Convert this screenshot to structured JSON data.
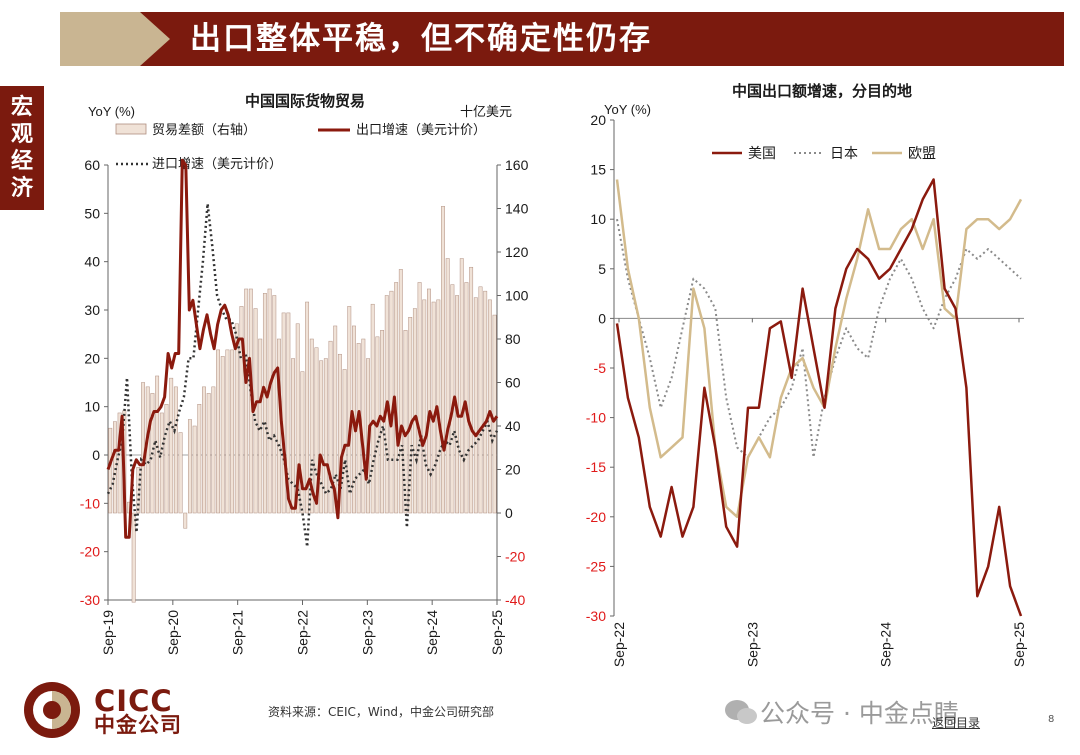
{
  "header": {
    "title": "出口整体平稳，但不确定性仍存",
    "section": "宏观经济"
  },
  "colors": {
    "brand": "#7b1a0e",
    "beige": "#c9b592",
    "bars": "#f0e2d7",
    "us": "#8b1a0e",
    "eu": "#d3bb8c",
    "japan": "#8a8a8a",
    "neg_ticks": "#e01a1a"
  },
  "chart_data": [
    {
      "type": "bar+line",
      "title": "中国国际货物贸易",
      "ylabel_left": "YoY (%)",
      "ylabel_right": "十亿美元",
      "ylim_left": [
        -30,
        60
      ],
      "ylim_right": [
        -40,
        160
      ],
      "yticks_left": [
        "60",
        "50",
        "40",
        "30",
        "20",
        "10",
        "0",
        "-10",
        "-20",
        "-30"
      ],
      "yticks_right": [
        "160",
        "140",
        "120",
        "100",
        "80",
        "60",
        "40",
        "20",
        "0",
        "-20",
        "-40"
      ],
      "xticks": [
        "Sep-19",
        "Sep-20",
        "Sep-21",
        "Sep-22",
        "Sep-23",
        "Sep-24",
        "Sep-25"
      ],
      "legend": {
        "bars": "贸易差额（右轴）",
        "export": "出口增速（美元计价）",
        "import": "进口增速（美元计价）"
      },
      "series": [
        {
          "name": "贸易差额（右轴）",
          "axis": "right",
          "values": [
            39,
            42,
            46,
            47,
            5,
            -41,
            21,
            60,
            58,
            55,
            63,
            46,
            50,
            62,
            58,
            37,
            -7,
            43,
            40,
            50,
            58,
            55,
            58,
            75,
            72,
            75,
            75,
            87,
            95,
            103,
            103,
            94,
            80,
            101,
            103,
            100,
            80,
            92,
            92,
            71,
            87,
            65,
            97,
            80,
            76,
            70,
            71,
            79,
            86,
            73,
            66,
            95,
            86,
            78,
            80,
            71,
            96,
            81,
            84,
            100,
            102,
            106,
            112,
            84,
            90,
            94,
            106,
            98,
            103,
            97,
            98,
            141,
            117,
            105,
            100,
            117,
            106,
            113,
            99,
            104,
            102,
            98,
            91
          ]
        },
        {
          "name": "出口增速（美元计价）",
          "axis": "left",
          "values": [
            -3,
            -1,
            1,
            1,
            8,
            -17,
            -17,
            -3,
            -1,
            -2,
            -2,
            3,
            7,
            9,
            9,
            10,
            12,
            21,
            18,
            21,
            21,
            61,
            60,
            30,
            32,
            27,
            22,
            26,
            29,
            25,
            22,
            27,
            30,
            31,
            29,
            25,
            22,
            24,
            24,
            15,
            20,
            9,
            11,
            11,
            14,
            12,
            15,
            17,
            18,
            7,
            -0.5,
            -9,
            -11,
            -11,
            -2,
            -7,
            -7,
            -5,
            -8,
            -10,
            0,
            -2,
            -2,
            -5,
            -7,
            -13,
            -0.5,
            2,
            2,
            9,
            5,
            9,
            2,
            -5,
            6,
            7,
            6,
            8,
            7,
            11,
            6,
            12,
            2,
            6,
            4,
            5,
            7,
            8,
            5,
            2,
            4,
            9,
            7,
            10,
            5,
            1,
            5,
            8,
            12,
            8,
            8,
            11,
            7,
            5,
            4,
            5,
            6,
            7,
            9,
            7,
            8
          ]
        },
        {
          "name": "进口增速（美元计价）",
          "axis": "left",
          "values": [
            -8,
            -6,
            -1,
            3,
            16,
            -4,
            -16,
            -1,
            -2,
            -1,
            3,
            -0.5,
            4,
            7,
            5,
            9,
            12,
            20,
            20,
            30,
            40,
            52,
            43,
            33,
            30,
            28,
            28,
            25,
            20,
            21,
            14,
            7,
            5,
            7,
            3,
            4,
            2,
            -0.5,
            -5,
            -6,
            -7,
            -12,
            -19,
            -1,
            -4,
            -6,
            -8,
            -7,
            -4,
            -7,
            -1,
            -8,
            -5,
            -4,
            -3,
            -6,
            -1,
            3,
            6,
            -1,
            -1,
            -1,
            2,
            -15,
            2,
            -1,
            4,
            -2,
            -4,
            -2,
            1,
            3,
            2,
            5,
            1,
            -1,
            1,
            2,
            3,
            5,
            7,
            3,
            5
          ]
        }
      ]
    },
    {
      "type": "line",
      "title": "中国出口额增速，分目的地",
      "ylabel": "YoY (%)",
      "ylim": [
        -30,
        20
      ],
      "yticks": [
        "20",
        "15",
        "10",
        "5",
        "0",
        "-5",
        "-10",
        "-15",
        "-20",
        "-25",
        "-30"
      ],
      "xticks": [
        "Sep-22",
        "Sep-23",
        "Sep-24",
        "Sep-25"
      ],
      "series": [
        {
          "name": "美国",
          "values": [
            -0.5,
            -8,
            -12,
            -19,
            -22,
            -17,
            -22,
            -19,
            -7,
            -13,
            -21,
            -23,
            -9,
            -9,
            -1,
            -0.3,
            -6,
            3,
            -3,
            -9,
            1,
            5,
            7,
            6,
            4,
            5,
            7,
            9,
            12,
            14,
            3,
            1,
            -7,
            -28,
            -25,
            -19,
            -27,
            -30
          ]
        },
        {
          "name": "日本",
          "values": [
            10,
            4,
            0,
            -4,
            -9,
            -6,
            -1,
            4,
            3,
            1,
            -8,
            -13,
            -14,
            -12,
            -10,
            -9,
            -7,
            -3,
            -14,
            -8,
            -4,
            -1,
            -3,
            -4,
            1,
            4,
            6,
            4,
            1,
            -1,
            2,
            4,
            7,
            6,
            7,
            6,
            5,
            4
          ]
        },
        {
          "name": "欧盟",
          "values": [
            14,
            5,
            0,
            -9,
            -14,
            -13,
            -12,
            3,
            -1,
            -13,
            -19,
            -20,
            -14,
            -12,
            -14,
            -8,
            -5,
            -4,
            -7,
            -9,
            -3,
            2,
            6,
            11,
            7,
            7,
            9,
            10,
            7,
            10,
            1,
            0,
            9,
            10,
            10,
            9,
            10,
            12
          ]
        }
      ]
    }
  ],
  "footer": {
    "source": "资料来源：CEIC，Wind，中金公司研究部",
    "logo_en": "CICC",
    "logo_cn": "中金公司",
    "watermark": "公众号 · 中金点睛",
    "back_link": "返回目录",
    "page": "8"
  }
}
